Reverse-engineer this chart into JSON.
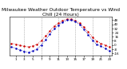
{
  "title": "Milwaukee Weather Outdoor Temperature vs Wind Chill (24 Hours)",
  "title_fontsize": 4.2,
  "background_color": "#ffffff",
  "grid_color": "#888888",
  "hours": [
    0,
    1,
    2,
    3,
    4,
    5,
    6,
    7,
    8,
    9,
    10,
    11,
    12,
    13,
    14,
    15,
    16,
    17,
    18,
    19,
    20,
    21,
    22,
    23
  ],
  "temp": [
    3,
    1,
    -1,
    -3,
    -4,
    -2,
    1,
    8,
    17,
    27,
    36,
    42,
    47,
    50,
    50,
    47,
    42,
    34,
    25,
    15,
    7,
    3,
    -1,
    -4
  ],
  "windchill": [
    -4,
    -7,
    -10,
    -13,
    -15,
    -12,
    -8,
    0,
    10,
    21,
    31,
    38,
    44,
    48,
    48,
    45,
    39,
    30,
    20,
    9,
    1,
    -3,
    -7,
    -12
  ],
  "temp_color": "#cc0000",
  "windchill_color": "#0000bb",
  "ylim": [
    -20,
    55
  ],
  "ytick_values": [
    -16,
    -8,
    0,
    8,
    16,
    24,
    32,
    40,
    48
  ],
  "ytick_labels": [
    "-16",
    "-8",
    "0",
    "8",
    "16",
    "24",
    "32",
    "40",
    "48"
  ],
  "xlim": [
    -0.5,
    23.5
  ],
  "xtick_values": [
    1,
    3,
    5,
    7,
    9,
    11,
    13,
    15,
    17,
    19,
    21,
    23
  ],
  "xtick_labels": [
    "1",
    "3",
    "5",
    "7",
    "9",
    "11",
    "13",
    "15",
    "17",
    "19",
    "21",
    "23"
  ],
  "vgrid_positions": [
    3,
    7,
    11,
    15,
    19,
    23
  ],
  "dot_size": 1.8,
  "linewidth": 0.6
}
